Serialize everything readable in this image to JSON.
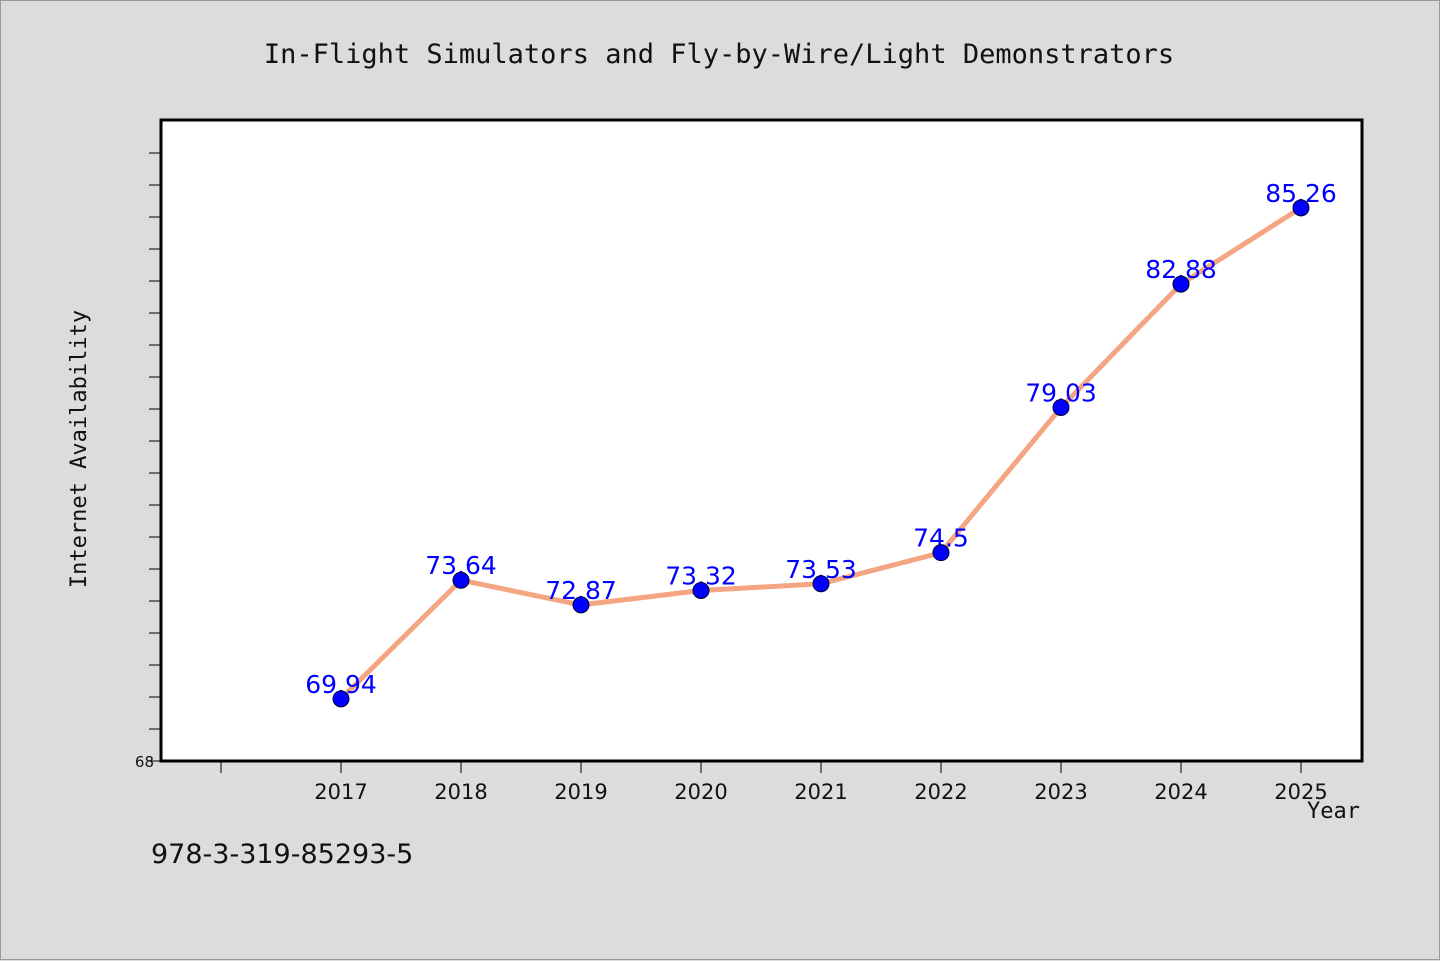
{
  "chart_data": {
    "type": "line",
    "title": "In-Flight Simulators and Fly-by-Wire/Light Demonstrators",
    "xlabel": "Year",
    "ylabel": "Internet Availability",
    "categories": [
      "2017",
      "2018",
      "2019",
      "2020",
      "2021",
      "2022",
      "2023",
      "2024",
      "2025"
    ],
    "series": [
      {
        "values": [
          69.94,
          73.64,
          72.87,
          73.32,
          73.53,
          74.5,
          79.03,
          82.88,
          85.26
        ],
        "labels": [
          "69.94",
          "73.64",
          "72.87",
          "73.32",
          "73.53",
          "74.5",
          "79.03",
          "82.88",
          "85.26"
        ],
        "line_color": "#f4a582",
        "marker_color": "#0000ff"
      }
    ],
    "ylim": [
      68,
      88
    ],
    "y_min_label": "68",
    "grid": false,
    "legend": "none"
  },
  "footer": {
    "isbn": "978-3-319-85293-5"
  },
  "colors": {
    "background": "#dcdcdc",
    "plot_background": "#ffffff",
    "line": "#f4a582",
    "marker": "#0000ff",
    "data_label": "#0000ff"
  }
}
